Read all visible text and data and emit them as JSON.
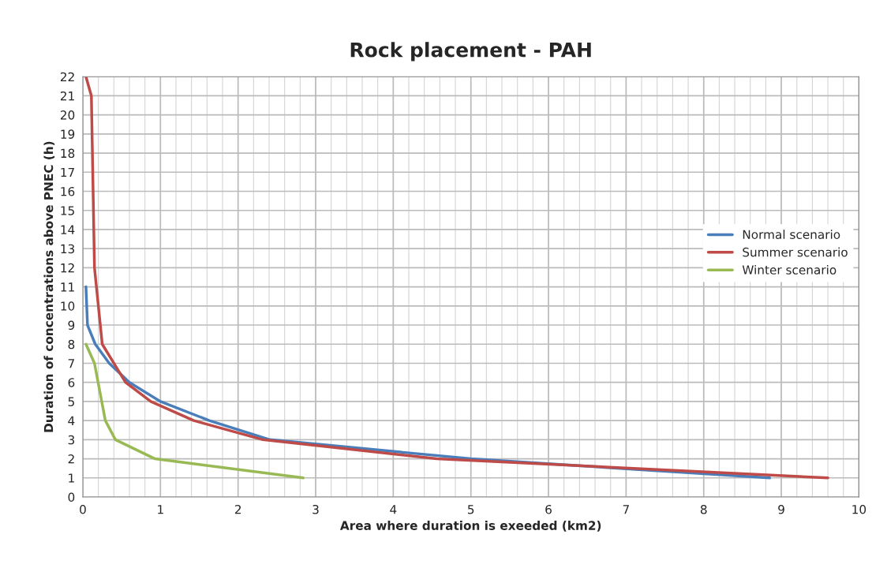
{
  "chart_data": {
    "type": "line",
    "title": "Rock placement - PAH",
    "xlabel": "Area where duration is exeeded (km2)",
    "ylabel": "Duration of concentrations above PNEC (h)",
    "series": [
      {
        "name": "Normal scenario",
        "color": "#4a7ebb",
        "x": [
          0.04,
          0.06,
          0.16,
          0.34,
          0.6,
          1.0,
          1.63,
          2.41,
          5.0,
          8.85
        ],
        "values": [
          11,
          9,
          8,
          7,
          6,
          5,
          4,
          3,
          2,
          1
        ]
      },
      {
        "name": "Summer scenario",
        "color": "#be4b48",
        "x": [
          0.04,
          0.11,
          0.15,
          0.25,
          0.55,
          0.875,
          1.43,
          2.32,
          4.56,
          9.6
        ],
        "values": [
          22,
          21,
          12,
          8,
          6,
          5,
          4,
          3,
          2,
          1
        ]
      },
      {
        "name": "Winter scenario",
        "color": "#98b954",
        "x": [
          0.04,
          0.15,
          0.29,
          0.42,
          0.93,
          2.84
        ],
        "values": [
          8,
          7,
          4,
          3,
          2,
          1
        ]
      }
    ],
    "xlim": [
      0,
      10
    ],
    "xticks": [
      0,
      1,
      2,
      3,
      4,
      5,
      6,
      7,
      8,
      9,
      10
    ],
    "ylim": [
      0,
      22
    ],
    "yticks": [
      0,
      1,
      2,
      3,
      4,
      5,
      6,
      7,
      8,
      9,
      10,
      11,
      12,
      13,
      14,
      15,
      16,
      17,
      18,
      19,
      20,
      21,
      22
    ],
    "grid": true,
    "legend": "right",
    "marker": "none",
    "line_style": "solid"
  }
}
